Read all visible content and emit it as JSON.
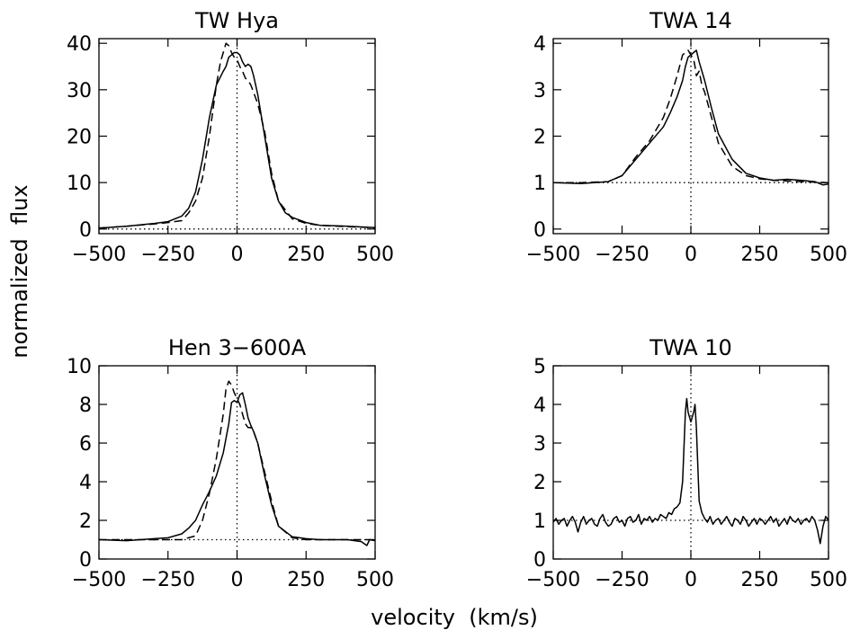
{
  "figure": {
    "ylabel": "normalized  flux",
    "xlabel": "velocity  (km/s)"
  },
  "chart_data": [
    {
      "type": "line",
      "title": "TW  Hya",
      "xlim": [
        -500,
        500
      ],
      "ylim": [
        -1,
        41
      ],
      "xticks": [
        -500,
        -250,
        0,
        250,
        500
      ],
      "xtick_labels": [
        "−500",
        "−250",
        "0",
        "250",
        "500"
      ],
      "yticks": [
        0,
        10,
        20,
        30,
        40
      ],
      "ytick_labels": [
        "0",
        "10",
        "20",
        "30",
        "40"
      ],
      "baseline": 0,
      "series": [
        {
          "style": "solid",
          "x": [
            -500,
            -400,
            -300,
            -250,
            -200,
            -175,
            -150,
            -125,
            -100,
            -75,
            -50,
            -40,
            -30,
            -20,
            -10,
            0,
            10,
            20,
            30,
            40,
            50,
            60,
            75,
            100,
            125,
            150,
            175,
            200,
            250,
            300,
            400,
            500
          ],
          "y": [
            0.2,
            0.6,
            1.2,
            1.6,
            2.8,
            4.5,
            8,
            15,
            24,
            31,
            34,
            35,
            37,
            37.5,
            38,
            38,
            37.5,
            36,
            35,
            35.5,
            35,
            33,
            29,
            20,
            11,
            6,
            3.5,
            2.5,
            1.4,
            0.8,
            0.6,
            0.3
          ]
        },
        {
          "style": "dashed",
          "x": [
            -500,
            -400,
            -300,
            -250,
            -200,
            -175,
            -150,
            -125,
            -100,
            -75,
            -60,
            -50,
            -40,
            -30,
            -20,
            -10,
            0,
            10,
            20,
            30,
            40,
            50,
            75,
            100,
            125,
            150,
            200,
            250,
            300,
            400,
            500
          ],
          "y": [
            0.2,
            0.6,
            1.1,
            1.4,
            1.8,
            3.5,
            6,
            11,
            20,
            31,
            36,
            38,
            40,
            39.5,
            38,
            37,
            36.5,
            35,
            34,
            32.5,
            32,
            31,
            27,
            21,
            12,
            6,
            2.2,
            1.2,
            0.8,
            0.5,
            0.3
          ]
        }
      ]
    },
    {
      "type": "line",
      "title": "TWA  14",
      "xlim": [
        -500,
        500
      ],
      "ylim": [
        -0.1,
        4.1
      ],
      "xticks": [
        -500,
        -250,
        0,
        250,
        500
      ],
      "xtick_labels": [
        "−500",
        "−250",
        "0",
        "250",
        "500"
      ],
      "yticks": [
        0,
        1,
        2,
        3,
        4
      ],
      "ytick_labels": [
        "0",
        "1",
        "2",
        "3",
        "4"
      ],
      "baseline": 1,
      "series": [
        {
          "style": "solid",
          "x": [
            -500,
            -400,
            -300,
            -250,
            -200,
            -150,
            -100,
            -75,
            -50,
            -30,
            -20,
            -10,
            0,
            10,
            20,
            30,
            50,
            75,
            100,
            150,
            200,
            250,
            300,
            350,
            400,
            450,
            480,
            500
          ],
          "y": [
            1,
            0.98,
            1.02,
            1.15,
            1.5,
            1.85,
            2.2,
            2.5,
            2.85,
            3.2,
            3.5,
            3.7,
            3.75,
            3.8,
            3.85,
            3.6,
            3.2,
            2.6,
            2.05,
            1.5,
            1.2,
            1.1,
            1.05,
            1.07,
            1.05,
            1.02,
            0.95,
            0.97
          ]
        },
        {
          "style": "dashed",
          "x": [
            -500,
            -400,
            -300,
            -250,
            -200,
            -150,
            -100,
            -75,
            -50,
            -30,
            -20,
            -10,
            0,
            10,
            15,
            20,
            30,
            40,
            50,
            75,
            100,
            150,
            200,
            250,
            300,
            400,
            500
          ],
          "y": [
            1,
            1.0,
            1.02,
            1.15,
            1.55,
            1.9,
            2.4,
            2.8,
            3.3,
            3.75,
            3.8,
            3.85,
            3.75,
            3.65,
            3.5,
            3.3,
            3.4,
            3.1,
            2.95,
            2.4,
            1.85,
            1.35,
            1.15,
            1.08,
            1.05,
            1.02,
            1.0
          ]
        }
      ]
    },
    {
      "type": "line",
      "title": "Hen  3−600A",
      "xlim": [
        -500,
        500
      ],
      "ylim": [
        0,
        10
      ],
      "xticks": [
        -500,
        -250,
        0,
        250,
        500
      ],
      "xtick_labels": [
        "−500",
        "−250",
        "0",
        "250",
        "500"
      ],
      "yticks": [
        0,
        2,
        4,
        6,
        8,
        10
      ],
      "ytick_labels": [
        "0",
        "2",
        "4",
        "6",
        "8",
        "10"
      ],
      "baseline": 1,
      "series": [
        {
          "style": "solid",
          "x": [
            -500,
            -400,
            -300,
            -250,
            -200,
            -175,
            -150,
            -125,
            -100,
            -75,
            -50,
            -30,
            -20,
            -10,
            0,
            10,
            20,
            30,
            40,
            50,
            60,
            75,
            100,
            125,
            150,
            200,
            250,
            300,
            400,
            450,
            470,
            480,
            500
          ],
          "y": [
            1,
            0.95,
            1.05,
            1.1,
            1.3,
            1.6,
            2,
            2.8,
            3.5,
            4.3,
            5.5,
            7,
            8.1,
            8.2,
            8.1,
            8.5,
            8.6,
            8,
            7.3,
            6.9,
            6.6,
            6,
            4.3,
            2.8,
            1.7,
            1.15,
            1.05,
            1,
            1.0,
            0.9,
            0.7,
            1.0,
            0.95
          ]
        },
        {
          "style": "dashed",
          "x": [
            -500,
            -400,
            -300,
            -250,
            -200,
            -150,
            -125,
            -100,
            -75,
            -50,
            -40,
            -30,
            -20,
            -10,
            0,
            10,
            20,
            30,
            40,
            50,
            60,
            75,
            100,
            125,
            150,
            200,
            250,
            300,
            400,
            500
          ],
          "y": [
            1,
            1.0,
            1.0,
            1.0,
            1.0,
            1.2,
            2,
            3.4,
            5.2,
            7.5,
            8.8,
            9.2,
            9,
            8.6,
            8.3,
            8,
            7.5,
            7,
            6.8,
            6.8,
            6.6,
            6,
            4.5,
            3,
            1.7,
            1.1,
            1,
            1,
            1,
            1
          ]
        }
      ]
    },
    {
      "type": "line",
      "title": "TWA  10",
      "xlim": [
        -500,
        500
      ],
      "ylim": [
        0,
        5
      ],
      "xticks": [
        -500,
        -250,
        0,
        250,
        500
      ],
      "xtick_labels": [
        "−500",
        "−250",
        "0",
        "250",
        "500"
      ],
      "yticks": [
        0,
        1,
        2,
        3,
        4,
        5
      ],
      "ytick_labels": [
        "0",
        "1",
        "2",
        "3",
        "4",
        "5"
      ],
      "baseline": 1,
      "series": [
        {
          "style": "solid",
          "x": [
            -500,
            -490,
            -480,
            -470,
            -460,
            -450,
            -440,
            -430,
            -420,
            -410,
            -400,
            -390,
            -380,
            -370,
            -360,
            -350,
            -340,
            -330,
            -320,
            -310,
            -300,
            -290,
            -280,
            -270,
            -260,
            -250,
            -240,
            -230,
            -220,
            -210,
            -200,
            -190,
            -180,
            -170,
            -160,
            -150,
            -140,
            -130,
            -120,
            -110,
            -100,
            -90,
            -80,
            -70,
            -60,
            -50,
            -40,
            -30,
            -20,
            -15,
            -10,
            0,
            10,
            15,
            20,
            30,
            40,
            50,
            60,
            70,
            80,
            90,
            100,
            110,
            120,
            130,
            140,
            150,
            160,
            170,
            180,
            190,
            200,
            210,
            220,
            230,
            240,
            250,
            260,
            270,
            280,
            290,
            300,
            310,
            320,
            330,
            340,
            350,
            360,
            370,
            380,
            390,
            400,
            410,
            420,
            430,
            440,
            450,
            460,
            470,
            480,
            490,
            500
          ],
          "y": [
            0.95,
            1.05,
            0.9,
            1.0,
            1.05,
            0.85,
            1.0,
            1.1,
            0.95,
            0.7,
            0.95,
            1.1,
            0.9,
            1.0,
            1.05,
            0.9,
            0.85,
            1.05,
            1.15,
            0.95,
            0.85,
            0.9,
            1.05,
            1.1,
            0.95,
            1.0,
            0.85,
            1.05,
            1.1,
            0.95,
            1.0,
            1.15,
            0.9,
            1.05,
            1.0,
            1.1,
            0.95,
            1.05,
            1.0,
            1.15,
            1.1,
            1.05,
            1.2,
            1.15,
            1.3,
            1.35,
            1.45,
            2.0,
            3.8,
            4.15,
            3.8,
            3.55,
            3.8,
            4.0,
            3.4,
            1.5,
            1.2,
            1.05,
            0.95,
            1.1,
            0.9,
            1.0,
            1.05,
            0.9,
            1.0,
            1.1,
            0.95,
            0.85,
            1.05,
            1.0,
            0.9,
            1.1,
            1.0,
            0.85,
            0.95,
            1.05,
            0.9,
            1.05,
            1.0,
            0.9,
            1.0,
            1.1,
            0.95,
            1.05,
            0.85,
            0.95,
            1.05,
            0.9,
            1.1,
            1.0,
            0.95,
            1.05,
            0.9,
            1.0,
            1.05,
            0.95,
            1.1,
            1.0,
            0.75,
            0.4,
            0.85,
            1.1,
            1.0
          ]
        }
      ]
    }
  ]
}
